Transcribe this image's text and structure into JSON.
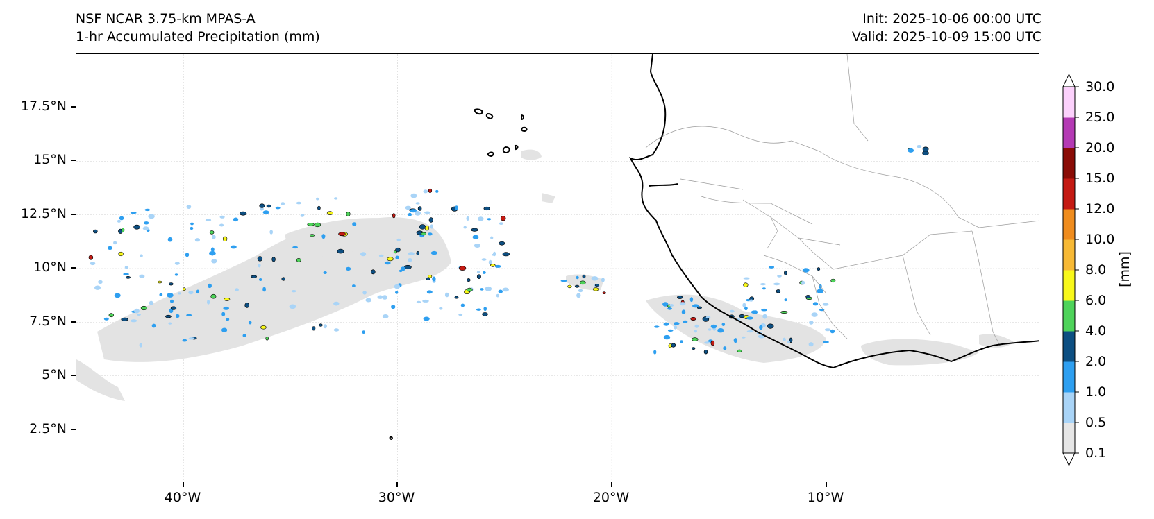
{
  "header": {
    "model": "NSF NCAR 3.75-km MPAS-A",
    "field": "1-hr Accumulated Precipitation (mm)",
    "init": "Init: 2025-10-06 00:00 UTC",
    "valid": "Valid: 2025-10-09 15:00 UTC"
  },
  "map": {
    "lat_labels": [
      "17.5°N",
      "15°N",
      "12.5°N",
      "10°N",
      "7.5°N",
      "5°N",
      "2.5°N"
    ],
    "lon_labels": [
      "40°W",
      "30°W",
      "20°W",
      "10°W"
    ],
    "extent": {
      "lon": [
        -45,
        0
      ],
      "lat": [
        0,
        20
      ]
    },
    "gridlines": true
  },
  "colorbar": {
    "levels": [
      "0.1",
      "0.5",
      "1.0",
      "2.0",
      "4.0",
      "6.0",
      "8.0",
      "10.0",
      "12.0",
      "15.0",
      "20.0",
      "25.0",
      "30.0"
    ],
    "colors": [
      "#e6e6e6",
      "#a9d4f7",
      "#2e9ff0",
      "#0d4f82",
      "#4ed35a",
      "#f8f81a",
      "#f7b935",
      "#ef8c1e",
      "#c41a13",
      "#8a0c06",
      "#b43ab4",
      "#fcd1fc"
    ],
    "unit": "[mm]"
  }
}
